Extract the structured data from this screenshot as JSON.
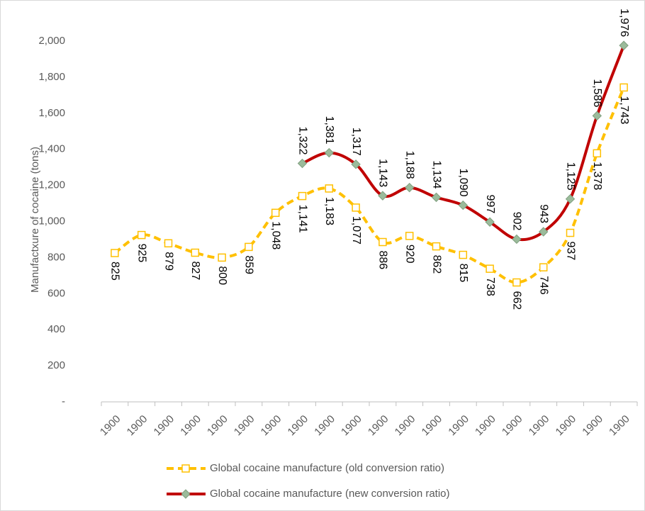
{
  "chart_data": {
    "type": "line",
    "y_label": "Manufactxure of cocaine (tons)",
    "categories": [
      "1900",
      "1900",
      "1900",
      "1900",
      "1900",
      "1900",
      "1900",
      "1900",
      "1900",
      "1900",
      "1900",
      "1900",
      "1900",
      "1900",
      "1900",
      "1900",
      "1900",
      "1900",
      "1900",
      "1900"
    ],
    "series": [
      {
        "name": "Global cocaine manufacture (old conversion ratio)",
        "color": "#ffc000",
        "dashed": true,
        "marker": "square",
        "values": [
          825,
          925,
          879,
          827,
          800,
          859,
          1048,
          1141,
          1183,
          1077,
          886,
          920,
          862,
          815,
          738,
          662,
          746,
          937,
          1378,
          1743
        ],
        "value_labels": [
          "825",
          "925",
          "879",
          "827",
          "800",
          "859",
          "1,048",
          "1,141",
          "1,183",
          "1,077",
          "886",
          "920",
          "862",
          "815",
          "738",
          "662",
          "746",
          "937",
          "1,378",
          "1,743"
        ]
      },
      {
        "name": "Global cocaine manufacture (new conversion ratio)",
        "color": "#c00000",
        "dashed": false,
        "marker": "diamond",
        "values": [
          null,
          null,
          null,
          null,
          null,
          null,
          null,
          1322,
          1381,
          1317,
          1143,
          1188,
          1134,
          1090,
          997,
          902,
          943,
          1125,
          1586,
          1976
        ],
        "value_labels": [
          null,
          null,
          null,
          null,
          null,
          null,
          null,
          "1,322",
          "1,381",
          "1,317",
          "1,143",
          "1,188",
          "1,134",
          "1,090",
          "997",
          "902",
          "943",
          "1,125",
          "1,586",
          "1,976"
        ]
      }
    ],
    "ylim": [
      0,
      2000
    ],
    "yticks": [
      {
        "value": 0,
        "label": "-"
      },
      200,
      400,
      600,
      800,
      {
        "value": 1000,
        "label": "1,000"
      },
      {
        "value": 1200,
        "label": "1,200"
      },
      {
        "value": 1400,
        "label": "1,400"
      },
      {
        "value": 1600,
        "label": "1,600"
      },
      {
        "value": 1800,
        "label": "1,800"
      },
      {
        "value": 2000,
        "label": "2,000"
      }
    ],
    "grid": false,
    "legend": "bottom"
  }
}
